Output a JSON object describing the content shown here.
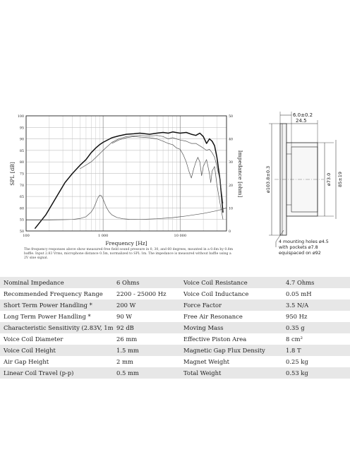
{
  "chart_data": {
    "type": "line",
    "xscale": "log",
    "xlim": [
      100,
      40000
    ],
    "ylim": [
      50,
      100
    ],
    "y2lim": [
      0,
      50
    ],
    "xlabel": "Frequency [Hz]",
    "ylabel": "SPL [dB]",
    "y2label": "Impedance [ohm]",
    "x_ticks": [
      100,
      1000,
      10000
    ],
    "x_tick_labels": [
      "100",
      "1 000",
      "10 000"
    ],
    "y_ticks": [
      50,
      55,
      60,
      65,
      70,
      75,
      80,
      85,
      90,
      95,
      100
    ],
    "y2_ticks": [
      0,
      10,
      20,
      30,
      40,
      50
    ],
    "grid": true,
    "series": [
      {
        "style": "thick",
        "axis": "left",
        "x": [
          130,
          180,
          250,
          320,
          400,
          500,
          600,
          700,
          800,
          900,
          1000,
          1300,
          1600,
          2000,
          2500,
          3000,
          4000,
          5000,
          6000,
          7000,
          8000,
          10000,
          12000,
          14000,
          16000,
          18000,
          20000,
          22000,
          24000,
          26000,
          28000,
          30000,
          33000,
          36000
        ],
        "y": [
          51,
          57,
          65,
          71,
          75,
          78.5,
          81,
          84,
          86,
          87.5,
          88.5,
          90.5,
          91.3,
          92,
          92.2,
          92.5,
          92,
          92.5,
          92.8,
          92.5,
          93,
          92.5,
          92.8,
          92,
          91.5,
          92.5,
          91,
          88,
          90,
          89,
          87,
          82,
          72,
          58
        ]
      },
      {
        "style": "thin",
        "axis": "left",
        "x": [
          500,
          700,
          900,
          1000,
          1300,
          1600,
          2000,
          2500,
          3000,
          4000,
          5000,
          6000,
          7000,
          8000,
          10000,
          12000,
          14000,
          16000,
          18000,
          20000,
          22000,
          24000,
          26000,
          28000,
          30000,
          33000,
          36000
        ],
        "y": [
          77,
          80,
          83.5,
          85,
          88.5,
          90,
          91,
          91.3,
          91.5,
          91.2,
          91.5,
          91,
          90,
          90.5,
          89.5,
          89,
          88,
          88,
          87,
          86,
          85,
          85.5,
          84,
          82,
          78,
          72,
          62
        ]
      },
      {
        "style": "thin",
        "axis": "left",
        "x": [
          1300,
          1600,
          2000,
          2500,
          3000,
          4000,
          5000,
          6000,
          7000,
          8000,
          9000,
          10000,
          11000,
          12000,
          13000,
          14000,
          15000,
          16000,
          17000,
          18000,
          19000,
          20000,
          22000,
          24000,
          25000,
          26000,
          28000,
          30000,
          33000,
          36000
        ],
        "y": [
          88,
          89.5,
          90.5,
          91,
          90.8,
          90.5,
          90,
          89,
          88,
          87.5,
          86,
          85.5,
          83,
          80,
          76,
          73,
          77,
          80,
          82,
          80,
          74,
          78,
          81,
          75,
          71,
          76,
          78,
          70,
          62,
          55
        ]
      },
      {
        "style": "thin",
        "axis": "right",
        "x": [
          100,
          200,
          300,
          400,
          500,
          600,
          700,
          750,
          800,
          850,
          900,
          950,
          1000,
          1050,
          1100,
          1200,
          1300,
          1500,
          1800,
          2200,
          3000,
          5000,
          8000,
          12000,
          20000,
          30000,
          40000
        ],
        "y": [
          4.8,
          4.8,
          4.9,
          5.0,
          5.4,
          6.2,
          8.2,
          9.8,
          12.0,
          14.2,
          15.5,
          15.3,
          13.8,
          12.0,
          10.3,
          8.2,
          7.0,
          5.9,
          5.3,
          5.05,
          5.0,
          5.3,
          5.8,
          6.5,
          7.6,
          8.8,
          10.0
        ]
      }
    ]
  },
  "caption": "The frequency responses above show measured free field sound pressure in 0, 30, and 60 degrees, mounted in a 0.6m by 0.8m baffle. Input 2.83 Vrms, microphone distance 0.5m, normalized to SPL 1m. The impedance is measured without baffle using a 2V sine signal.",
  "drawing": {
    "dim_total_depth": "6.0±0.2",
    "dim_depth": "24.5",
    "dim_flange_diameter": "ø103.8±0.3",
    "dim_body_diameter": "ø73.0",
    "dim_hole_spacing": "85±19",
    "note_line1": "4 mounting holes ø4.5",
    "note_line2": "with pockets ø7.8",
    "note_line3": "equispaced on ø92"
  },
  "specs": [
    [
      "Nominal Impedance",
      "6 Ohms",
      "Voice Coil Resistance",
      "4.7 Ohms"
    ],
    [
      "Recommended Frequency Range",
      "2200 - 25000 Hz",
      "Voice Coil Inductance",
      "0.05 mH"
    ],
    [
      "Short Term Power Handling *",
      "200 W",
      "Force Factor",
      "3.5 N/A"
    ],
    [
      "Long Term Power Handling *",
      "90 W",
      "Free Air Resonance",
      "950 Hz"
    ],
    [
      "Characteristic Sensitivity (2.83V, 1m)",
      "92 dB",
      "Moving Mass",
      "0.35 g"
    ],
    [
      "Voice Coil Diameter",
      "26 mm",
      "Effective Piston Area",
      "8 cm²"
    ],
    [
      "Voice Coil Height",
      "1.5 mm",
      "Magnetic Gap Flux Density",
      "1.8 T"
    ],
    [
      "Air Gap Height",
      "2 mm",
      "Magnet Weight",
      "0.25 kg"
    ],
    [
      "Linear Coil Travel (p-p)",
      "0.5 mm",
      "Total Weight",
      "0.53 kg"
    ]
  ]
}
